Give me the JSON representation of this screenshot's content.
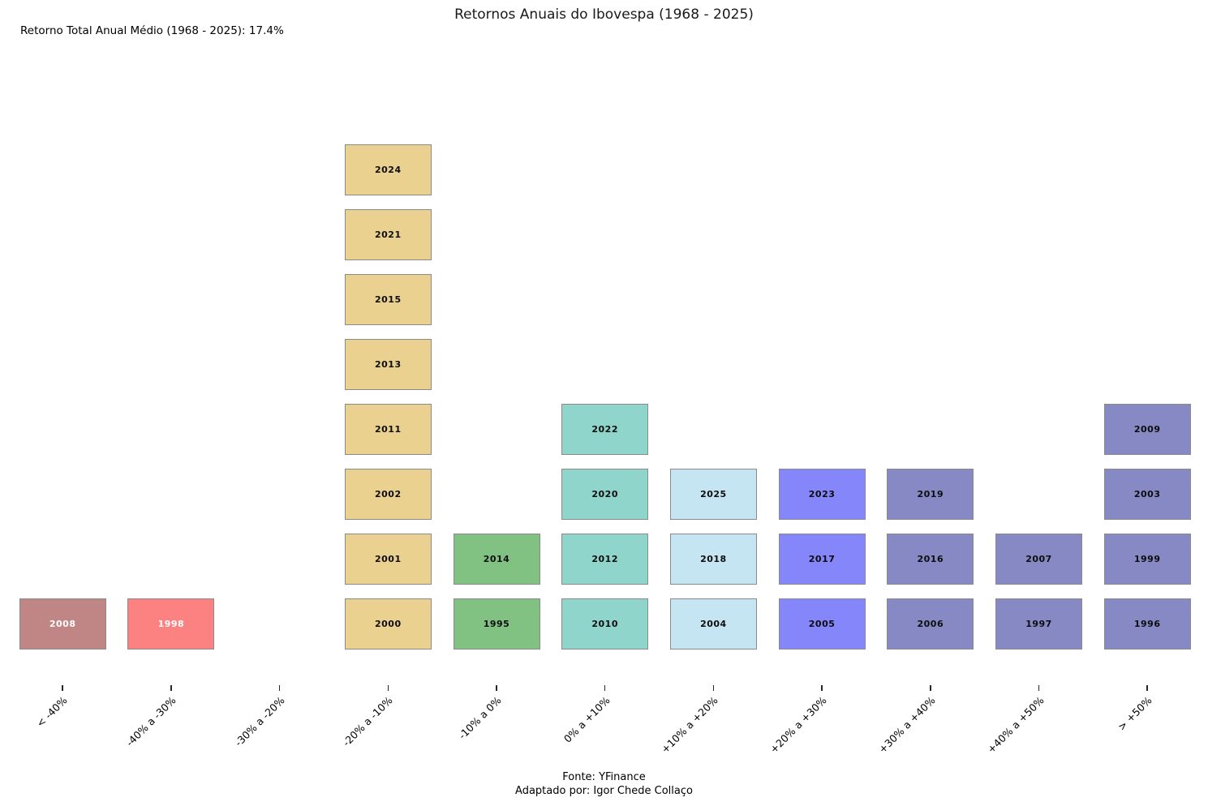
{
  "title": "Retornos Anuais do Ibovespa (1968 - 2025)",
  "annotation": "Retorno Total Anual Médio (1968 - 2025): 17.4%",
  "footer": {
    "source": "Fonte: YFinance",
    "adapted_by": "Adaptado por: Igor Chede Collaço"
  },
  "chart_data": {
    "type": "bar",
    "subtype": "binned-annual-return-histogram-of-years",
    "title": "Retornos Anuais do Ibovespa (1968 - 2025)",
    "xlabel": "",
    "ylabel": "",
    "grid": false,
    "legend": false,
    "stack_order": "bottom_to_top",
    "border_color": "#8a8a8a",
    "categories": [
      "< -40%",
      "-40% a -30%",
      "-30% a -20%",
      "-20% a -10%",
      "-10% a 0%",
      "0% a +10%",
      "+10% a +20%",
      "+20% a +30%",
      "+30% a +40%",
      "+40% a +50%",
      "> +50%"
    ],
    "values": [
      1,
      1,
      0,
      8,
      2,
      4,
      3,
      3,
      3,
      2,
      4
    ],
    "bins": [
      {
        "range": "< -40%",
        "years": [
          "2008"
        ],
        "color": "#c08585",
        "text_color": "#ffffff"
      },
      {
        "range": "-40% a -30%",
        "years": [
          "1998"
        ],
        "color": "#fc8181",
        "text_color": "#ffffff"
      },
      {
        "range": "-30% a -20%",
        "years": [],
        "color": null,
        "text_color": null
      },
      {
        "range": "-20% a -10%",
        "years": [
          "2000",
          "2001",
          "2002",
          "2011",
          "2013",
          "2015",
          "2021",
          "2024"
        ],
        "color": "#ebd18f",
        "text_color": "#0d0d0d"
      },
      {
        "range": "-10% a 0%",
        "years": [
          "1995",
          "2014"
        ],
        "color": "#81c283",
        "text_color": "#0d0d0d"
      },
      {
        "range": "0% a +10%",
        "years": [
          "2010",
          "2012",
          "2020",
          "2022"
        ],
        "color": "#8fd5cb",
        "text_color": "#0d0d0d"
      },
      {
        "range": "+10% a +20%",
        "years": [
          "2004",
          "2018",
          "2025"
        ],
        "color": "#c5e5f3",
        "text_color": "#0d0d0d"
      },
      {
        "range": "+20% a +30%",
        "years": [
          "2005",
          "2017",
          "2023"
        ],
        "color": "#8486f9",
        "text_color": "#0d0d0d"
      },
      {
        "range": "+30% a +40%",
        "years": [
          "2006",
          "2016",
          "2019"
        ],
        "color": "#8689c4",
        "text_color": "#0d0d0d"
      },
      {
        "range": "+40% a +50%",
        "years": [
          "1997",
          "2007"
        ],
        "color": "#8689c4",
        "text_color": "#0d0d0d"
      },
      {
        "range": "> +50%",
        "years": [
          "1996",
          "1999",
          "2003",
          "2009"
        ],
        "color": "#8689c4",
        "text_color": "#0d0d0d"
      }
    ]
  }
}
